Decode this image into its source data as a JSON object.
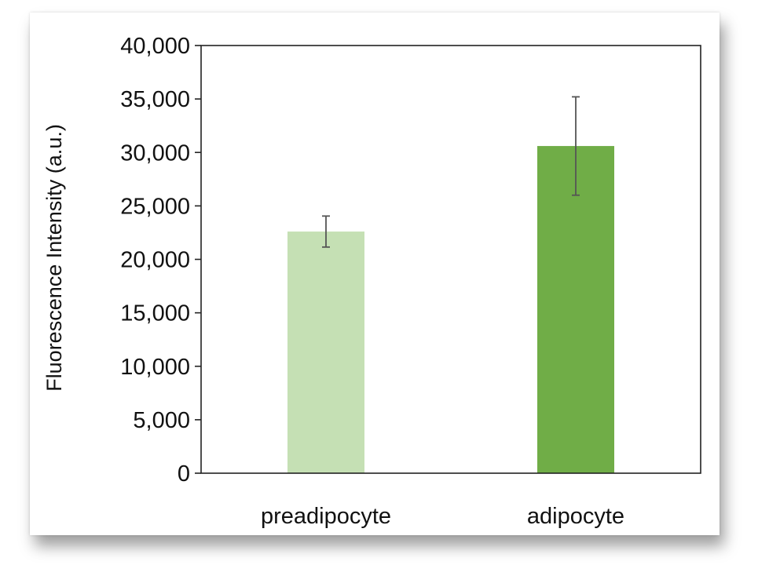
{
  "chart_data": {
    "type": "bar",
    "title": "",
    "xlabel": "",
    "ylabel": "Fluorescence Intensity  (a.u.)",
    "categories": [
      "preadipocyte",
      "adipocyte"
    ],
    "values": [
      22600,
      30600
    ],
    "error": [
      1450,
      4600
    ],
    "ylim": [
      0,
      40000
    ],
    "yticks": [
      0,
      5000,
      10000,
      15000,
      20000,
      25000,
      30000,
      35000,
      40000
    ],
    "ytick_labels": [
      "0",
      "5,000",
      "10,000",
      "15,000",
      "20,000",
      "25,000",
      "30,000",
      "35,000",
      "40,000"
    ],
    "colors": [
      "#c5e0b4",
      "#70ad47"
    ],
    "error_bar_color": "#555555",
    "grid": false,
    "legend": "none"
  }
}
